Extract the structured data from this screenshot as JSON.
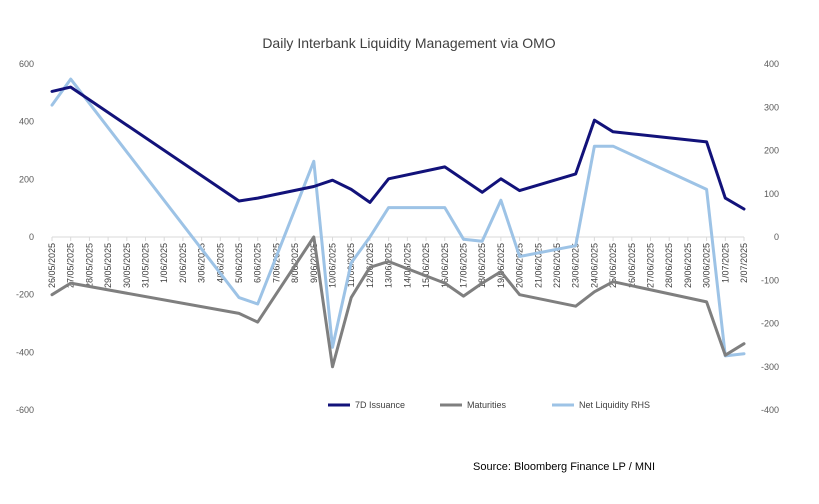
{
  "chart_data": {
    "type": "line",
    "title": "Daily Interbank Liquidity Management via OMO",
    "source": "Source: Bloomberg Finance LP / MNI",
    "categories": [
      "26/05/2025",
      "27/05/2025",
      "28/05/2025",
      "29/05/2025",
      "30/05/2025",
      "31/05/2025",
      "1/06/2025",
      "2/06/2025",
      "3/06/2025",
      "4/06/2025",
      "5/06/2025",
      "6/06/2025",
      "7/06/2025",
      "8/06/2025",
      "9/06/2025",
      "10/06/2025",
      "11/06/2025",
      "12/06/2025",
      "13/06/2025",
      "14/06/2025",
      "15/06/2025",
      "16/06/2025",
      "17/06/2025",
      "18/06/2025",
      "19/06/2025",
      "20/06/2025",
      "21/06/2025",
      "22/06/2025",
      "23/06/2025",
      "24/06/2025",
      "25/06/2025",
      "26/06/2025",
      "27/06/2025",
      "28/06/2025",
      "29/06/2025",
      "30/06/2025",
      "1/07/2025",
      "2/07/2025"
    ],
    "ylim": [
      -600,
      600
    ],
    "yticks": [
      600,
      400,
      200,
      0,
      -200,
      -400,
      -600
    ],
    "y2lim": [
      -400,
      400
    ],
    "y2ticks": [
      400,
      300,
      200,
      100,
      0,
      -100,
      -200,
      -300,
      -400
    ],
    "legend_position": "bottom-right",
    "series": [
      {
        "name": "7D Issuance",
        "color": "#12127a",
        "axis": "left",
        "points": [
          [
            0,
            505
          ],
          [
            1,
            520
          ],
          [
            10,
            125
          ],
          [
            11,
            135
          ],
          [
            14,
            175
          ],
          [
            15,
            197
          ],
          [
            16,
            165
          ],
          [
            17,
            120
          ],
          [
            18,
            202
          ],
          [
            21,
            243
          ],
          [
            23,
            155
          ],
          [
            24,
            202
          ],
          [
            25,
            161
          ],
          [
            28,
            219
          ],
          [
            29,
            405
          ],
          [
            30,
            365
          ],
          [
            35,
            330
          ],
          [
            36,
            135
          ],
          [
            37,
            97
          ]
        ]
      },
      {
        "name": "Maturities",
        "color": "#7f7f7f",
        "axis": "left",
        "points": [
          [
            0,
            -200
          ],
          [
            1,
            -160
          ],
          [
            10,
            -265
          ],
          [
            11,
            -295
          ],
          [
            14,
            0
          ],
          [
            15,
            -450
          ],
          [
            16,
            -210
          ],
          [
            17,
            -105
          ],
          [
            18,
            -85
          ],
          [
            21,
            -160
          ],
          [
            22,
            -205
          ],
          [
            23,
            -160
          ],
          [
            24,
            -120
          ],
          [
            25,
            -200
          ],
          [
            28,
            -240
          ],
          [
            29,
            -190
          ],
          [
            30,
            -155
          ],
          [
            35,
            -225
          ],
          [
            36,
            -410
          ],
          [
            37,
            -370
          ]
        ]
      },
      {
        "name": "Net Liquidity RHS",
        "color": "#9dc3e6",
        "axis": "right",
        "points": [
          [
            0,
            305
          ],
          [
            1,
            365
          ],
          [
            10,
            -140
          ],
          [
            11,
            -155
          ],
          [
            14,
            175
          ],
          [
            15,
            -255
          ],
          [
            16,
            -60
          ],
          [
            17,
            0
          ],
          [
            18,
            68
          ],
          [
            21,
            68
          ],
          [
            22,
            -5
          ],
          [
            23,
            -10
          ],
          [
            24,
            85
          ],
          [
            25,
            -45
          ],
          [
            28,
            -20
          ],
          [
            29,
            210
          ],
          [
            30,
            210
          ],
          [
            35,
            110
          ],
          [
            36,
            -275
          ],
          [
            37,
            -270
          ]
        ]
      }
    ]
  }
}
